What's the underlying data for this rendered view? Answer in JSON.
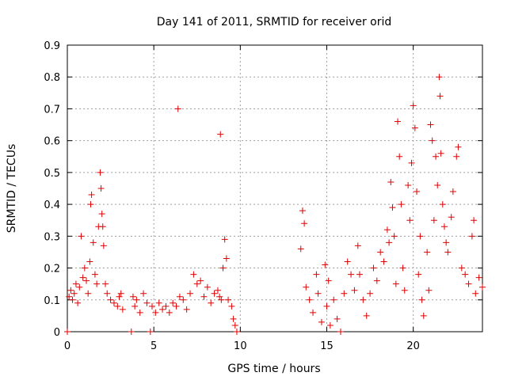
{
  "chart_data": {
    "type": "scatter",
    "title": "Day 141 of 2011, SRMTID for receiver orid",
    "xlabel": "GPS time / hours",
    "ylabel": "SRMTID / TECUs",
    "xlim": [
      0,
      24
    ],
    "ylim": [
      0,
      0.9
    ],
    "xticks": [
      0,
      5,
      10,
      15,
      20
    ],
    "yticks": [
      0,
      0.1,
      0.2,
      0.3,
      0.4,
      0.5,
      0.6,
      0.7,
      0.8,
      0.9
    ],
    "xtick_labels": [
      "0",
      "5",
      "10",
      "15",
      "20"
    ],
    "ytick_labels": [
      "0",
      "0.1",
      "0.2",
      "0.3",
      "0.4",
      "0.5",
      "0.6",
      "0.7",
      "0.8",
      "0.9"
    ],
    "grid": true,
    "marker": "plus",
    "color": "#e00000",
    "series": [
      {
        "name": "SRMTID",
        "points": [
          [
            0.0,
            0.0
          ],
          [
            0.1,
            0.11
          ],
          [
            0.2,
            0.13
          ],
          [
            0.3,
            0.1
          ],
          [
            0.4,
            0.12
          ],
          [
            0.5,
            0.15
          ],
          [
            0.6,
            0.09
          ],
          [
            0.7,
            0.14
          ],
          [
            0.8,
            0.3
          ],
          [
            0.9,
            0.17
          ],
          [
            1.0,
            0.2
          ],
          [
            1.1,
            0.16
          ],
          [
            1.2,
            0.12
          ],
          [
            1.3,
            0.22
          ],
          [
            1.35,
            0.4
          ],
          [
            1.4,
            0.43
          ],
          [
            1.5,
            0.28
          ],
          [
            1.6,
            0.18
          ],
          [
            1.7,
            0.15
          ],
          [
            1.8,
            0.33
          ],
          [
            1.9,
            0.5
          ],
          [
            1.95,
            0.45
          ],
          [
            2.0,
            0.37
          ],
          [
            2.05,
            0.33
          ],
          [
            2.1,
            0.27
          ],
          [
            2.2,
            0.15
          ],
          [
            2.3,
            0.12
          ],
          [
            2.5,
            0.1
          ],
          [
            2.7,
            0.09
          ],
          [
            2.9,
            0.08
          ],
          [
            3.0,
            0.11
          ],
          [
            3.1,
            0.12
          ],
          [
            3.2,
            0.07
          ],
          [
            3.7,
            0.0
          ],
          [
            3.8,
            0.11
          ],
          [
            3.9,
            0.08
          ],
          [
            4.0,
            0.1
          ],
          [
            4.2,
            0.06
          ],
          [
            4.4,
            0.12
          ],
          [
            4.6,
            0.09
          ],
          [
            4.8,
            0.0
          ],
          [
            4.9,
            0.08
          ],
          [
            5.1,
            0.06
          ],
          [
            5.3,
            0.09
          ],
          [
            5.5,
            0.07
          ],
          [
            5.7,
            0.08
          ],
          [
            5.9,
            0.06
          ],
          [
            6.1,
            0.09
          ],
          [
            6.3,
            0.08
          ],
          [
            6.4,
            0.7
          ],
          [
            6.5,
            0.11
          ],
          [
            6.7,
            0.1
          ],
          [
            6.9,
            0.07
          ],
          [
            7.1,
            0.12
          ],
          [
            7.3,
            0.18
          ],
          [
            7.5,
            0.15
          ],
          [
            7.7,
            0.16
          ],
          [
            7.9,
            0.11
          ],
          [
            8.1,
            0.14
          ],
          [
            8.3,
            0.09
          ],
          [
            8.5,
            0.12
          ],
          [
            8.7,
            0.13
          ],
          [
            8.8,
            0.11
          ],
          [
            8.85,
            0.62
          ],
          [
            8.9,
            0.1
          ],
          [
            9.0,
            0.2
          ],
          [
            9.1,
            0.29
          ],
          [
            9.2,
            0.23
          ],
          [
            9.3,
            0.1
          ],
          [
            9.5,
            0.08
          ],
          [
            9.6,
            0.04
          ],
          [
            9.7,
            0.02
          ],
          [
            9.8,
            0.0
          ],
          [
            13.5,
            0.26
          ],
          [
            13.6,
            0.38
          ],
          [
            13.7,
            0.34
          ],
          [
            13.8,
            0.14
          ],
          [
            14.0,
            0.1
          ],
          [
            14.2,
            0.06
          ],
          [
            14.4,
            0.18
          ],
          [
            14.5,
            0.12
          ],
          [
            14.7,
            0.03
          ],
          [
            14.9,
            0.21
          ],
          [
            15.0,
            0.08
          ],
          [
            15.1,
            0.16
          ],
          [
            15.2,
            0.02
          ],
          [
            15.4,
            0.1
          ],
          [
            15.6,
            0.04
          ],
          [
            15.8,
            0.0
          ],
          [
            16.0,
            0.12
          ],
          [
            16.2,
            0.22
          ],
          [
            16.4,
            0.18
          ],
          [
            16.6,
            0.13
          ],
          [
            16.8,
            0.27
          ],
          [
            16.9,
            0.18
          ],
          [
            17.1,
            0.1
          ],
          [
            17.3,
            0.05
          ],
          [
            17.5,
            0.12
          ],
          [
            17.7,
            0.2
          ],
          [
            17.9,
            0.16
          ],
          [
            18.1,
            0.25
          ],
          [
            18.3,
            0.22
          ],
          [
            18.5,
            0.32
          ],
          [
            18.6,
            0.28
          ],
          [
            18.7,
            0.47
          ],
          [
            18.8,
            0.39
          ],
          [
            18.9,
            0.3
          ],
          [
            19.0,
            0.15
          ],
          [
            19.1,
            0.66
          ],
          [
            19.2,
            0.55
          ],
          [
            19.3,
            0.4
          ],
          [
            19.4,
            0.2
          ],
          [
            19.5,
            0.13
          ],
          [
            19.7,
            0.46
          ],
          [
            19.8,
            0.35
          ],
          [
            19.9,
            0.53
          ],
          [
            20.0,
            0.71
          ],
          [
            20.1,
            0.64
          ],
          [
            20.2,
            0.44
          ],
          [
            20.3,
            0.18
          ],
          [
            20.4,
            0.3
          ],
          [
            20.5,
            0.1
          ],
          [
            20.6,
            0.05
          ],
          [
            20.8,
            0.25
          ],
          [
            20.9,
            0.13
          ],
          [
            21.0,
            0.65
          ],
          [
            21.1,
            0.6
          ],
          [
            21.2,
            0.35
          ],
          [
            21.3,
            0.55
          ],
          [
            21.4,
            0.46
          ],
          [
            21.5,
            0.8
          ],
          [
            21.55,
            0.74
          ],
          [
            21.6,
            0.56
          ],
          [
            21.7,
            0.4
          ],
          [
            21.8,
            0.33
          ],
          [
            21.9,
            0.28
          ],
          [
            22.0,
            0.25
          ],
          [
            22.2,
            0.36
          ],
          [
            22.3,
            0.44
          ],
          [
            22.5,
            0.55
          ],
          [
            22.6,
            0.58
          ],
          [
            22.8,
            0.2
          ],
          [
            23.0,
            0.18
          ],
          [
            23.2,
            0.15
          ],
          [
            23.4,
            0.3
          ],
          [
            23.5,
            0.35
          ],
          [
            23.6,
            0.12
          ],
          [
            23.8,
            0.17
          ],
          [
            24.0,
            0.14
          ]
        ]
      }
    ]
  }
}
